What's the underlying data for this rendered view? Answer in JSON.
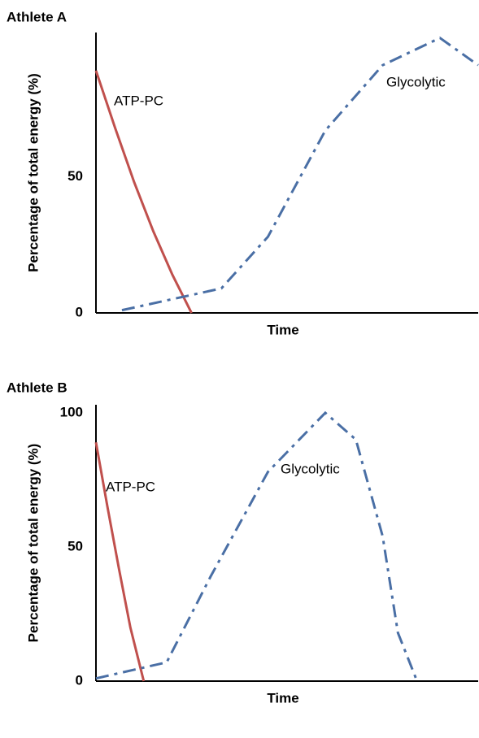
{
  "chart_data": [
    {
      "type": "line",
      "title": "Athlete A",
      "x_label": "Time",
      "y_label": "Percentage of total energy (%)",
      "xlim": [
        0,
        100
      ],
      "ylim": [
        0,
        103
      ],
      "yticks": [
        0,
        50
      ],
      "series": [
        {
          "name": "ATP-PC",
          "color": "#c0504d",
          "style": "solid",
          "x": [
            0,
            5,
            10,
            15,
            20,
            25
          ],
          "values": [
            89,
            68,
            48,
            30,
            14,
            0
          ]
        },
        {
          "name": "Glycolytic",
          "color": "#4a6fa5",
          "style": "dashdot",
          "x": [
            6.8,
            32.8,
            45,
            60,
            75,
            90,
            100
          ],
          "values": [
            1,
            9,
            28,
            67,
            91,
            101,
            91
          ]
        }
      ]
    },
    {
      "type": "line",
      "title": "Athlete B",
      "x_label": "Time",
      "y_label": "Percentage of total energy (%)",
      "xlim": [
        0,
        100
      ],
      "ylim": [
        0,
        103
      ],
      "yticks": [
        0,
        50,
        100
      ],
      "series": [
        {
          "name": "ATP-PC",
          "color": "#c0504d",
          "style": "solid",
          "x": [
            0,
            3,
            6,
            9,
            12.5
          ],
          "values": [
            89,
            65,
            42,
            20,
            0
          ]
        },
        {
          "name": "Glycolytic",
          "color": "#4a6fa5",
          "style": "dashdot",
          "x": [
            0,
            18.5,
            30,
            45,
            60,
            68,
            75,
            79,
            84
          ],
          "values": [
            1,
            7,
            39,
            78,
            100,
            90,
            54,
            18,
            0
          ]
        }
      ]
    }
  ]
}
